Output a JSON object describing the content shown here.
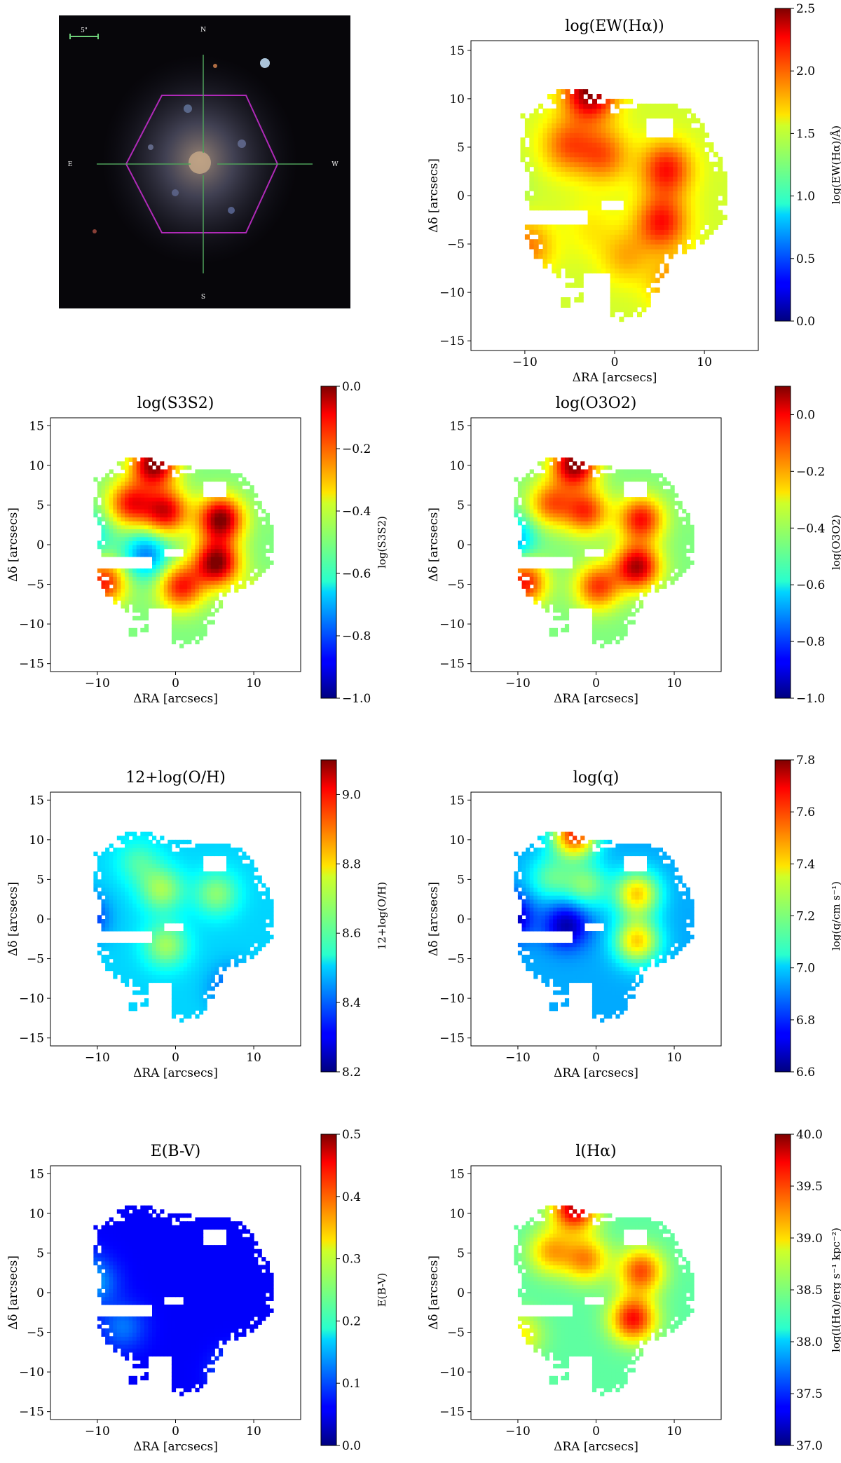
{
  "image_panel": {
    "scale_label": "5\"",
    "compass": {
      "north": "N",
      "south": "S",
      "east": "E",
      "west": "W"
    },
    "colors": {
      "background": "#07060a",
      "hexagon": "#b02ab8",
      "crosshair": "#4fa05a",
      "scalebar": "#6fd07a"
    }
  },
  "chart_data": [
    {
      "type": "heatmap",
      "title": "log(EW(Hα))",
      "xlabel": "ΔRA [arcsecs]",
      "ylabel": "Δδ [arcsecs]",
      "xlim": [
        -16,
        16
      ],
      "ylim": [
        -16,
        16
      ],
      "xticks": [
        "−10",
        "0",
        "10"
      ],
      "yticks": [
        "15",
        "10",
        "5",
        "0",
        "−5",
        "−10",
        "−15"
      ],
      "colorbar": {
        "label": "log(EW(Hα)/Å)",
        "range": [
          0.0,
          2.5
        ],
        "ticks": [
          "0.0",
          "0.5",
          "1.0",
          "1.5",
          "2.0",
          "2.5"
        ]
      },
      "background_value": 1.45,
      "blobs": [
        {
          "x": -3.0,
          "y": 10.5,
          "value": 2.5
        },
        {
          "x": -5.5,
          "y": 5.0,
          "value": 1.95
        },
        {
          "x": -1.5,
          "y": 4.0,
          "value": 1.95
        },
        {
          "x": 5.5,
          "y": 2.5,
          "value": 2.15
        },
        {
          "x": 5.0,
          "y": -3.0,
          "value": 2.15
        },
        {
          "x": -10.0,
          "y": -5.5,
          "value": 1.9
        },
        {
          "x": 6.5,
          "y": -9.5,
          "value": 1.9
        },
        {
          "x": 1.0,
          "y": -6.5,
          "value": 1.75
        },
        {
          "x": -3.0,
          "y": -3.5,
          "value": 1.6
        },
        {
          "x": -12.5,
          "y": 0.5,
          "value": 1.3
        }
      ],
      "grid": false
    },
    {
      "type": "heatmap",
      "title": "log(S3S2)",
      "xlabel": "ΔRA [arcsecs]",
      "ylabel": "Δδ [arcsecs]",
      "xlim": [
        -16,
        16
      ],
      "ylim": [
        -16,
        16
      ],
      "xticks": [
        "−10",
        "0",
        "10"
      ],
      "yticks": [
        "15",
        "10",
        "5",
        "0",
        "−5",
        "−10",
        "−15"
      ],
      "colorbar": {
        "label": "log(S3S2)",
        "range": [
          -1.0,
          0.0
        ],
        "ticks": [
          "−1.0",
          "−0.8",
          "−0.6",
          "−0.4",
          "−0.2",
          "0.0"
        ]
      },
      "background_value": -0.5,
      "blobs": [
        {
          "x": -3.0,
          "y": 10.0,
          "value": 0.0
        },
        {
          "x": -6.0,
          "y": 5.0,
          "value": -0.15
        },
        {
          "x": -1.5,
          "y": 4.0,
          "value": -0.1
        },
        {
          "x": 5.5,
          "y": 3.0,
          "value": 0.0
        },
        {
          "x": 5.0,
          "y": -2.5,
          "value": 0.0
        },
        {
          "x": -9.5,
          "y": -5.0,
          "value": -0.15
        },
        {
          "x": 0.5,
          "y": -5.5,
          "value": -0.15
        },
        {
          "x": 10.5,
          "y": -8.0,
          "value": -0.3
        },
        {
          "x": -11.5,
          "y": 1.0,
          "value": -0.65
        },
        {
          "x": -4.0,
          "y": -1.5,
          "value": -0.75
        }
      ],
      "grid": false
    },
    {
      "type": "heatmap",
      "title": "log(O3O2)",
      "xlabel": "ΔRA [arcsecs]",
      "ylabel": "Δδ [arcsecs]",
      "xlim": [
        -16,
        16
      ],
      "ylim": [
        -16,
        16
      ],
      "xticks": [
        "−10",
        "0",
        "10"
      ],
      "yticks": [
        "15",
        "10",
        "5",
        "0",
        "−5",
        "−10",
        "−15"
      ],
      "colorbar": {
        "label": "log(O3O2)",
        "range": [
          -1.0,
          0.1
        ],
        "ticks": [
          "−1.0",
          "−0.8",
          "−0.6",
          "−0.4",
          "−0.2",
          "0.0"
        ]
      },
      "background_value": -0.45,
      "blobs": [
        {
          "x": -3.0,
          "y": 10.0,
          "value": 0.1
        },
        {
          "x": -6.0,
          "y": 5.0,
          "value": -0.15
        },
        {
          "x": -1.5,
          "y": 4.0,
          "value": -0.1
        },
        {
          "x": 5.5,
          "y": 3.0,
          "value": -0.05
        },
        {
          "x": 5.0,
          "y": -3.0,
          "value": 0.05
        },
        {
          "x": -9.5,
          "y": -5.0,
          "value": -0.05
        },
        {
          "x": 0.0,
          "y": -5.5,
          "value": -0.1
        },
        {
          "x": -11.0,
          "y": 0.5,
          "value": -0.7
        }
      ],
      "grid": false
    },
    {
      "type": "heatmap",
      "title": "12+log(O/H)",
      "xlabel": "ΔRA [arcsecs]",
      "ylabel": "Δδ [arcsecs]",
      "xlim": [
        -16,
        16
      ],
      "ylim": [
        -16,
        16
      ],
      "xticks": [
        "−10",
        "0",
        "10"
      ],
      "yticks": [
        "15",
        "10",
        "5",
        "0",
        "−5",
        "−10",
        "−15"
      ],
      "colorbar": {
        "label": "12+log(O/H)",
        "range": [
          8.2,
          9.1
        ],
        "ticks": [
          "8.2",
          "8.4",
          "8.6",
          "8.8",
          "9.0"
        ]
      },
      "background_value": 8.5,
      "blobs": [
        {
          "x": -2.0,
          "y": 3.5,
          "value": 8.68
        },
        {
          "x": 5.0,
          "y": 3.0,
          "value": 8.66
        },
        {
          "x": -1.5,
          "y": -3.5,
          "value": 8.68
        },
        {
          "x": -5.0,
          "y": 7.0,
          "value": 8.6
        },
        {
          "x": -12.0,
          "y": 0.0,
          "value": 8.3
        },
        {
          "x": 7.0,
          "y": -9.0,
          "value": 8.38
        }
      ],
      "grid": false
    },
    {
      "type": "heatmap",
      "title": "log(q)",
      "xlabel": "ΔRA [arcsecs]",
      "ylabel": "Δδ [arcsecs]",
      "xlim": [
        -16,
        16
      ],
      "ylim": [
        -16,
        16
      ],
      "xticks": [
        "−10",
        "0",
        "10"
      ],
      "yticks": [
        "15",
        "10",
        "5",
        "0",
        "−5",
        "−10",
        "−15"
      ],
      "colorbar": {
        "label": "log(q/cm s⁻¹)",
        "range": [
          6.6,
          7.8
        ],
        "ticks": [
          "6.6",
          "6.8",
          "7.0",
          "7.2",
          "7.4",
          "7.6",
          "7.8"
        ]
      },
      "background_value": 6.95,
      "blobs": [
        {
          "x": -3.0,
          "y": 10.5,
          "value": 7.6
        },
        {
          "x": 5.0,
          "y": 3.0,
          "value": 7.4
        },
        {
          "x": 5.0,
          "y": -3.0,
          "value": 7.4
        },
        {
          "x": -1.5,
          "y": 4.0,
          "value": 7.2
        },
        {
          "x": -6.0,
          "y": 5.0,
          "value": 7.15
        },
        {
          "x": -11.5,
          "y": 0.0,
          "value": 6.6
        },
        {
          "x": -4.0,
          "y": -1.0,
          "value": 6.65
        }
      ],
      "grid": false
    },
    {
      "type": "heatmap",
      "title": "E(B-V)",
      "xlabel": "ΔRA [arcsecs]",
      "ylabel": "Δδ [arcsecs]",
      "xlim": [
        -16,
        16
      ],
      "ylim": [
        -16,
        16
      ],
      "xticks": [
        "−10",
        "0",
        "10"
      ],
      "yticks": [
        "15",
        "10",
        "5",
        "0",
        "−5",
        "−10",
        "−15"
      ],
      "colorbar": {
        "label": "E(B-V)",
        "range": [
          0.0,
          0.5
        ],
        "ticks": [
          "0.0",
          "0.1",
          "0.2",
          "0.3",
          "0.4",
          "0.5"
        ]
      },
      "background_value": 0.06,
      "blobs": [
        {
          "x": -10.5,
          "y": 1.0,
          "value": 0.13
        },
        {
          "x": -7.0,
          "y": -4.5,
          "value": 0.12
        },
        {
          "x": 7.5,
          "y": -10.5,
          "value": 0.14
        },
        {
          "x": -12.5,
          "y": 2.5,
          "value": 0.1
        }
      ],
      "grid": false
    },
    {
      "type": "heatmap",
      "title": "l(Hα)",
      "xlabel": "ΔRA [arcsecs]",
      "ylabel": "Δδ [arcsecs]",
      "xlim": [
        -16,
        16
      ],
      "ylim": [
        -16,
        16
      ],
      "xticks": [
        "−10",
        "0",
        "10"
      ],
      "yticks": [
        "15",
        "10",
        "5",
        "0",
        "−5",
        "−10",
        "−15"
      ],
      "colorbar": {
        "label": "log(l(Hα)/erg s⁻¹ kpc⁻²)",
        "range": [
          37.0,
          40.0
        ],
        "ticks": [
          "37.0",
          "37.5",
          "38.0",
          "38.5",
          "39.0",
          "39.5",
          "40.0"
        ]
      },
      "background_value": 38.4,
      "blobs": [
        {
          "x": -3.0,
          "y": 10.5,
          "value": 39.8
        },
        {
          "x": -6.0,
          "y": 5.0,
          "value": 39.1
        },
        {
          "x": -1.5,
          "y": 4.0,
          "value": 39.2
        },
        {
          "x": 5.5,
          "y": 2.5,
          "value": 39.4
        },
        {
          "x": 4.5,
          "y": -3.5,
          "value": 39.6
        },
        {
          "x": -10.0,
          "y": -5.5,
          "value": 38.9
        }
      ],
      "grid": false
    }
  ]
}
